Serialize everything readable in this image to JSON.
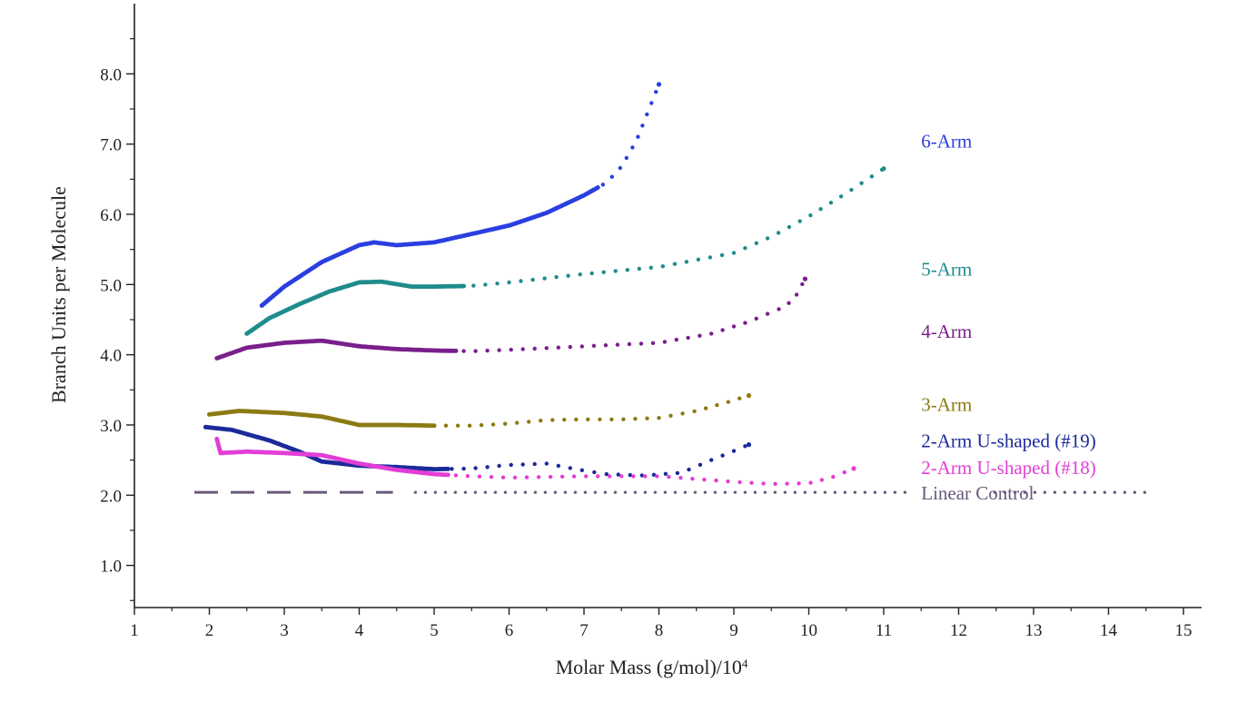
{
  "chart_data": {
    "type": "scatter",
    "title": "",
    "xlabel": "Molar Mass (g/mol)/10",
    "xlabel_superscript": "4",
    "ylabel": "Branch Units per Molecule",
    "xlim": [
      1,
      15
    ],
    "ylim": [
      0.4,
      9.0
    ],
    "x_ticks": [
      1,
      2,
      3,
      4,
      5,
      6,
      7,
      8,
      9,
      10,
      11,
      12,
      13,
      14,
      15
    ],
    "x_tick_labels": [
      "1",
      "2",
      "3",
      "4",
      "5",
      "6",
      "7",
      "8",
      "9",
      "10",
      "11",
      "12",
      "13",
      "14",
      "15"
    ],
    "y_ticks": [
      1,
      2,
      3,
      4,
      5,
      6,
      7,
      8
    ],
    "y_tick_labels": [
      "1.0",
      "2.0",
      "3.0",
      "4.0",
      "5.0",
      "6.0",
      "7.0",
      "8.0"
    ],
    "grid": false,
    "legend": "right",
    "series": [
      {
        "name": "6-Arm",
        "color": "#2a3fe0",
        "label_at": [
          11.5,
          6.95
        ],
        "points": [
          [
            2.7,
            4.7
          ],
          [
            3.0,
            4.97
          ],
          [
            3.5,
            5.32
          ],
          [
            4.0,
            5.56
          ],
          [
            4.2,
            5.6
          ],
          [
            4.5,
            5.56
          ],
          [
            5.0,
            5.6
          ],
          [
            5.5,
            5.72
          ],
          [
            6.0,
            5.84
          ],
          [
            6.5,
            6.02
          ],
          [
            7.0,
            6.27
          ],
          [
            7.3,
            6.45
          ],
          [
            7.5,
            6.68
          ],
          [
            7.7,
            7.05
          ],
          [
            7.85,
            7.45
          ],
          [
            8.0,
            7.85
          ]
        ]
      },
      {
        "name": "5-Arm",
        "color": "#1f8c8c",
        "label_at": [
          11.5,
          5.13
        ],
        "points": [
          [
            2.5,
            4.3
          ],
          [
            2.8,
            4.52
          ],
          [
            3.2,
            4.72
          ],
          [
            3.6,
            4.9
          ],
          [
            4.0,
            5.03
          ],
          [
            4.3,
            5.04
          ],
          [
            4.7,
            4.97
          ],
          [
            5.0,
            4.97
          ],
          [
            5.5,
            4.98
          ],
          [
            6.0,
            5.03
          ],
          [
            7.0,
            5.15
          ],
          [
            8.0,
            5.25
          ],
          [
            9.0,
            5.45
          ],
          [
            9.5,
            5.68
          ],
          [
            10.0,
            5.97
          ],
          [
            10.5,
            6.3
          ],
          [
            11.0,
            6.65
          ]
        ]
      },
      {
        "name": "4-Arm",
        "color": "#7a1f8c",
        "label_at": [
          11.5,
          4.24
        ],
        "points": [
          [
            2.1,
            3.95
          ],
          [
            2.5,
            4.1
          ],
          [
            3.0,
            4.17
          ],
          [
            3.5,
            4.2
          ],
          [
            4.0,
            4.12
          ],
          [
            4.5,
            4.08
          ],
          [
            5.0,
            4.06
          ],
          [
            5.5,
            4.05
          ],
          [
            6.0,
            4.07
          ],
          [
            7.0,
            4.12
          ],
          [
            8.0,
            4.17
          ],
          [
            8.7,
            4.3
          ],
          [
            9.2,
            4.47
          ],
          [
            9.6,
            4.65
          ],
          [
            9.8,
            4.78
          ],
          [
            9.95,
            5.08
          ]
        ]
      },
      {
        "name": "3-Arm",
        "color": "#8c7a12",
        "label_at": [
          11.5,
          3.2
        ],
        "points": [
          [
            2.0,
            3.15
          ],
          [
            2.4,
            3.2
          ],
          [
            3.0,
            3.17
          ],
          [
            3.5,
            3.12
          ],
          [
            4.0,
            3.0
          ],
          [
            4.5,
            3.0
          ],
          [
            5.0,
            2.99
          ],
          [
            5.5,
            2.99
          ],
          [
            6.0,
            3.02
          ],
          [
            6.5,
            3.07
          ],
          [
            7.0,
            3.08
          ],
          [
            7.5,
            3.08
          ],
          [
            8.0,
            3.1
          ],
          [
            8.5,
            3.2
          ],
          [
            8.9,
            3.32
          ],
          [
            9.2,
            3.42
          ]
        ]
      },
      {
        "name": "2-Arm U-shaped (#19)",
        "color": "#1a2a9a",
        "label_at": [
          11.5,
          2.68
        ],
        "points": [
          [
            1.95,
            2.97
          ],
          [
            2.3,
            2.93
          ],
          [
            2.8,
            2.78
          ],
          [
            3.2,
            2.62
          ],
          [
            3.5,
            2.48
          ],
          [
            4.0,
            2.42
          ],
          [
            4.5,
            2.4
          ],
          [
            5.0,
            2.37
          ],
          [
            5.5,
            2.38
          ],
          [
            6.0,
            2.43
          ],
          [
            6.5,
            2.45
          ],
          [
            7.0,
            2.35
          ],
          [
            7.3,
            2.3
          ],
          [
            7.8,
            2.28
          ],
          [
            8.3,
            2.32
          ],
          [
            8.7,
            2.5
          ],
          [
            9.0,
            2.63
          ],
          [
            9.2,
            2.72
          ]
        ]
      },
      {
        "name": "2-Arm U-shaped (#18)",
        "color": "#e23ed6",
        "label_at": [
          11.5,
          2.3
        ],
        "points": [
          [
            2.1,
            2.8
          ],
          [
            2.15,
            2.6
          ],
          [
            2.5,
            2.62
          ],
          [
            3.0,
            2.6
          ],
          [
            3.5,
            2.57
          ],
          [
            4.0,
            2.45
          ],
          [
            4.5,
            2.36
          ],
          [
            5.0,
            2.3
          ],
          [
            5.5,
            2.27
          ],
          [
            6.0,
            2.25
          ],
          [
            7.0,
            2.27
          ],
          [
            7.5,
            2.27
          ],
          [
            8.0,
            2.27
          ],
          [
            8.5,
            2.23
          ],
          [
            9.0,
            2.19
          ],
          [
            9.5,
            2.16
          ],
          [
            10.0,
            2.17
          ],
          [
            10.3,
            2.25
          ],
          [
            10.6,
            2.38
          ]
        ]
      },
      {
        "name": "Linear Control",
        "color": "#6a5a7a",
        "label_at": [
          11.5,
          1.94
        ],
        "points": [
          [
            1.8,
            2.04
          ],
          [
            2.5,
            2.04
          ],
          [
            3.5,
            2.04
          ],
          [
            4.5,
            2.04
          ],
          [
            6.0,
            2.04
          ],
          [
            8.0,
            2.04
          ],
          [
            10.0,
            2.04
          ],
          [
            12.0,
            2.04
          ],
          [
            14.5,
            2.04
          ]
        ]
      }
    ]
  }
}
